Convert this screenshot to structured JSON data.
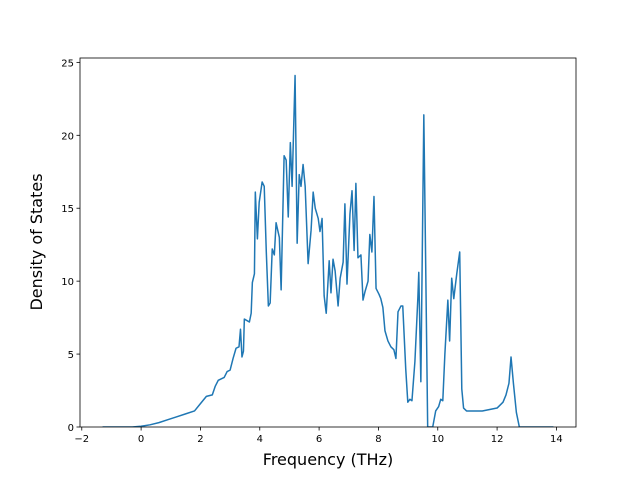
{
  "chart_data": {
    "type": "line",
    "x_label": "Frequency (THz)",
    "y_label": "Density of States",
    "xlim": [
      -2.06,
      14.66
    ],
    "ylim": [
      0,
      25.3
    ],
    "xticks": [
      {
        "value": -2,
        "label": "−2"
      },
      0,
      2,
      4,
      6,
      8,
      10,
      12,
      14
    ],
    "yticks": [
      0,
      5,
      10,
      15,
      20,
      25
    ],
    "series": [
      {
        "color": "#1f77b4",
        "x": [
          -1.3,
          -0.8,
          -0.3,
          0,
          0.3,
          0.6,
          0.9,
          1.2,
          1.5,
          1.8,
          2.0,
          2.2,
          2.4,
          2.5,
          2.6,
          2.8,
          2.9,
          3.0,
          3.1,
          3.2,
          3.3,
          3.35,
          3.4,
          3.45,
          3.48,
          3.65,
          3.71,
          3.75,
          3.82,
          3.85,
          3.92,
          3.98,
          4.08,
          4.15,
          4.22,
          4.29,
          4.35,
          4.42,
          4.49,
          4.55,
          4.66,
          4.72,
          4.82,
          4.89,
          4.96,
          5.03,
          5.09,
          5.19,
          5.26,
          5.33,
          5.39,
          5.46,
          5.53,
          5.63,
          5.73,
          5.8,
          5.87,
          5.97,
          6.03,
          6.1,
          6.17,
          6.24,
          6.34,
          6.4,
          6.47,
          6.54,
          6.64,
          6.71,
          6.81,
          6.87,
          6.94,
          7.04,
          7.11,
          7.18,
          7.24,
          7.31,
          7.41,
          7.48,
          7.55,
          7.65,
          7.71,
          7.78,
          7.85,
          7.92,
          8.02,
          8.08,
          8.15,
          8.22,
          8.32,
          8.42,
          8.52,
          8.59,
          8.66,
          8.76,
          8.82,
          8.92,
          8.99,
          9.06,
          9.13,
          9.23,
          9.33,
          9.36,
          9.43,
          9.53,
          9.6,
          9.66,
          9.83,
          9.93,
          10.03,
          10.1,
          10.17,
          10.24,
          10.34,
          10.4,
          10.47,
          10.54,
          10.64,
          10.74,
          10.81,
          10.87,
          10.97,
          11.5,
          12.0,
          12.2,
          12.3,
          12.4,
          12.47,
          12.55,
          12.65,
          12.75,
          13.9
        ],
        "values": [
          0,
          0,
          0,
          0.05,
          0.15,
          0.3,
          0.5,
          0.7,
          0.9,
          1.1,
          1.6,
          2.1,
          2.2,
          2.8,
          3.2,
          3.4,
          3.8,
          3.9,
          4.7,
          5.4,
          5.5,
          6.7,
          4.8,
          5.2,
          7.4,
          7.2,
          7.8,
          9.9,
          10.5,
          16.1,
          12.9,
          15.4,
          16.8,
          16.5,
          12.0,
          8.3,
          8.5,
          12.2,
          11.8,
          14.0,
          13.0,
          9.4,
          18.6,
          18.3,
          14.4,
          19.5,
          16.5,
          24.1,
          12.6,
          17.3,
          16.5,
          18.0,
          16.5,
          11.2,
          13.5,
          16.1,
          15.0,
          14.3,
          13.4,
          14.3,
          9.0,
          7.8,
          11.4,
          9.2,
          11.5,
          10.7,
          8.3,
          10.2,
          11.3,
          15.3,
          9.8,
          14.6,
          16.2,
          12.1,
          16.7,
          11.6,
          11.8,
          8.7,
          9.3,
          10.0,
          13.2,
          12.0,
          15.8,
          9.5,
          9.1,
          8.8,
          8.2,
          6.6,
          5.9,
          5.5,
          5.3,
          4.7,
          7.9,
          8.3,
          8.3,
          4.0,
          1.7,
          1.9,
          1.8,
          4.5,
          8.9,
          10.6,
          3.1,
          21.4,
          10,
          0,
          0,
          1.1,
          1.4,
          1.9,
          1.8,
          5.0,
          8.7,
          5.9,
          10.2,
          8.8,
          10.5,
          12.0,
          2.6,
          1.3,
          1.1,
          1.1,
          1.3,
          1.7,
          2.2,
          3.0,
          4.8,
          3.0,
          1.0,
          0,
          0
        ]
      }
    ]
  }
}
